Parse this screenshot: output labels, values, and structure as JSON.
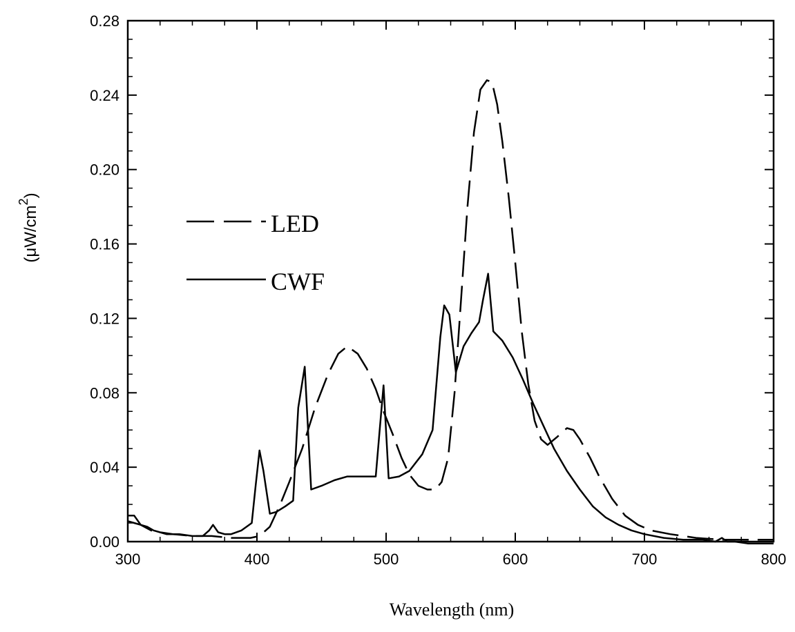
{
  "chart_data": {
    "type": "line",
    "title": "",
    "xlabel": "Wavelength (nm)",
    "ylabel": "(μW/cm²)",
    "ylabel_base": "(μW/cm",
    "ylabel_sup": "2",
    "ylabel_close": ")",
    "xlim": [
      300,
      800
    ],
    "ylim": [
      0,
      0.28
    ],
    "x_ticks": [
      300,
      400,
      500,
      600,
      700,
      800
    ],
    "x_tick_labels": [
      "300",
      "400",
      "500",
      "600",
      "700",
      "800"
    ],
    "y_ticks": [
      0,
      0.04,
      0.08,
      0.12,
      0.16,
      0.2,
      0.24,
      0.28
    ],
    "y_tick_labels": [
      "0.00",
      "0.04",
      "0.08",
      "0.12",
      "0.16",
      "0.20",
      "0.24",
      "0.28"
    ],
    "grid": false,
    "legend_position": "middle-left",
    "series": [
      {
        "name": "LED",
        "style": "dashed",
        "color": "#000000",
        "points": [
          [
            300,
            0.011
          ],
          [
            305,
            0.01
          ],
          [
            310,
            0.009
          ],
          [
            318,
            0.006
          ],
          [
            325,
            0.005
          ],
          [
            335,
            0.004
          ],
          [
            350,
            0.003
          ],
          [
            365,
            0.003
          ],
          [
            380,
            0.002
          ],
          [
            395,
            0.002
          ],
          [
            402,
            0.003
          ],
          [
            410,
            0.008
          ],
          [
            418,
            0.02
          ],
          [
            425,
            0.032
          ],
          [
            435,
            0.05
          ],
          [
            445,
            0.072
          ],
          [
            455,
            0.09
          ],
          [
            463,
            0.101
          ],
          [
            470,
            0.105
          ],
          [
            478,
            0.101
          ],
          [
            485,
            0.093
          ],
          [
            492,
            0.082
          ],
          [
            498,
            0.07
          ],
          [
            505,
            0.058
          ],
          [
            512,
            0.045
          ],
          [
            518,
            0.036
          ],
          [
            525,
            0.03
          ],
          [
            532,
            0.028
          ],
          [
            538,
            0.028
          ],
          [
            543,
            0.032
          ],
          [
            548,
            0.045
          ],
          [
            553,
            0.08
          ],
          [
            558,
            0.13
          ],
          [
            563,
            0.18
          ],
          [
            568,
            0.22
          ],
          [
            573,
            0.243
          ],
          [
            578,
            0.248
          ],
          [
            582,
            0.247
          ],
          [
            586,
            0.235
          ],
          [
            590,
            0.215
          ],
          [
            595,
            0.185
          ],
          [
            600,
            0.15
          ],
          [
            605,
            0.113
          ],
          [
            610,
            0.085
          ],
          [
            615,
            0.065
          ],
          [
            620,
            0.055
          ],
          [
            625,
            0.052
          ],
          [
            632,
            0.056
          ],
          [
            640,
            0.061
          ],
          [
            645,
            0.06
          ],
          [
            650,
            0.055
          ],
          [
            658,
            0.045
          ],
          [
            665,
            0.035
          ],
          [
            675,
            0.023
          ],
          [
            685,
            0.014
          ],
          [
            695,
            0.009
          ],
          [
            705,
            0.006
          ],
          [
            720,
            0.004
          ],
          [
            740,
            0.002
          ],
          [
            760,
            0.001
          ],
          [
            780,
            0.001
          ],
          [
            800,
            0.001
          ]
        ]
      },
      {
        "name": "CWF",
        "style": "solid",
        "color": "#000000",
        "points": [
          [
            300,
            0.014
          ],
          [
            305,
            0.014
          ],
          [
            310,
            0.009
          ],
          [
            315,
            0.008
          ],
          [
            320,
            0.006
          ],
          [
            325,
            0.005
          ],
          [
            330,
            0.004
          ],
          [
            340,
            0.004
          ],
          [
            350,
            0.003
          ],
          [
            358,
            0.003
          ],
          [
            363,
            0.006
          ],
          [
            366,
            0.009
          ],
          [
            370,
            0.005
          ],
          [
            375,
            0.004
          ],
          [
            380,
            0.004
          ],
          [
            388,
            0.006
          ],
          [
            396,
            0.01
          ],
          [
            399,
            0.03
          ],
          [
            402,
            0.049
          ],
          [
            405,
            0.038
          ],
          [
            410,
            0.015
          ],
          [
            415,
            0.016
          ],
          [
            422,
            0.019
          ],
          [
            428,
            0.022
          ],
          [
            432,
            0.072
          ],
          [
            437,
            0.094
          ],
          [
            442,
            0.028
          ],
          [
            450,
            0.03
          ],
          [
            460,
            0.033
          ],
          [
            470,
            0.035
          ],
          [
            480,
            0.035
          ],
          [
            492,
            0.035
          ],
          [
            495,
            0.06
          ],
          [
            498,
            0.084
          ],
          [
            502,
            0.034
          ],
          [
            510,
            0.035
          ],
          [
            518,
            0.038
          ],
          [
            528,
            0.047
          ],
          [
            536,
            0.06
          ],
          [
            542,
            0.11
          ],
          [
            545,
            0.127
          ],
          [
            549,
            0.122
          ],
          [
            554,
            0.091
          ],
          [
            560,
            0.105
          ],
          [
            566,
            0.112
          ],
          [
            572,
            0.118
          ],
          [
            575,
            0.13
          ],
          [
            579,
            0.144
          ],
          [
            583,
            0.113
          ],
          [
            590,
            0.108
          ],
          [
            598,
            0.099
          ],
          [
            606,
            0.087
          ],
          [
            614,
            0.074
          ],
          [
            622,
            0.062
          ],
          [
            630,
            0.05
          ],
          [
            640,
            0.038
          ],
          [
            650,
            0.028
          ],
          [
            660,
            0.019
          ],
          [
            670,
            0.013
          ],
          [
            680,
            0.009
          ],
          [
            690,
            0.006
          ],
          [
            700,
            0.004
          ],
          [
            715,
            0.002
          ],
          [
            730,
            0.001
          ],
          [
            745,
            0.001
          ],
          [
            755,
            0.0
          ],
          [
            760,
            0.002
          ],
          [
            764,
            0.0
          ],
          [
            770,
            0.0
          ],
          [
            780,
            -0.001
          ],
          [
            790,
            -0.001
          ],
          [
            800,
            -0.001
          ]
        ]
      }
    ]
  }
}
